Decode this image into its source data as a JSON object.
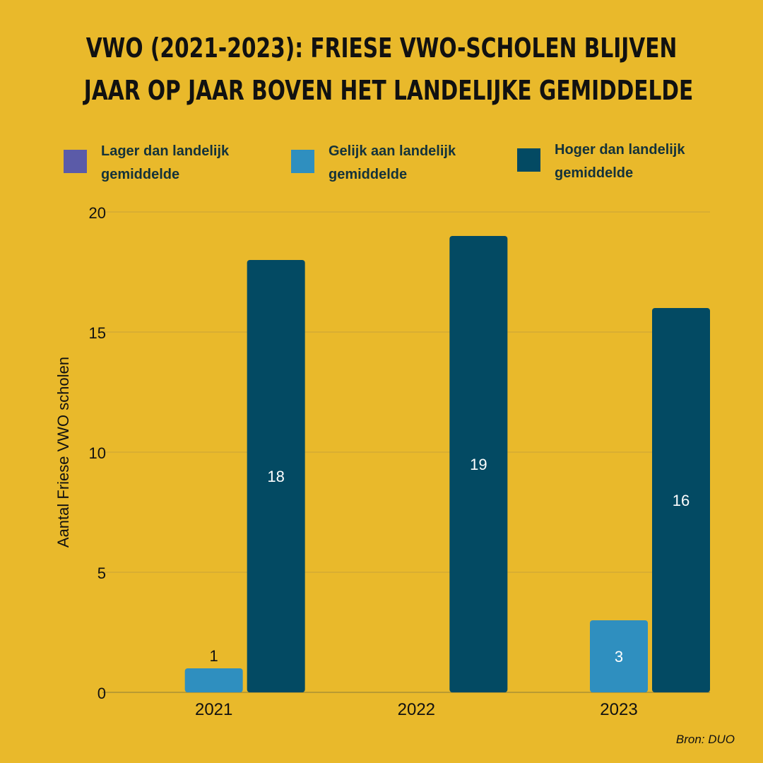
{
  "title": {
    "line1": "VWO (2021-2023): Friese VWO-scholen blijven",
    "line2": "jaar op jaar boven het landelijke gemiddelde"
  },
  "legend": [
    {
      "label": "Lager dan landelijk gemiddelde",
      "color": "#5b5ba8"
    },
    {
      "label": "Gelijk aan landelijk gemiddelde",
      "color": "#2f8fbf"
    },
    {
      "label": "Hoger dan landelijk gemiddelde",
      "color": "#034a63"
    }
  ],
  "source": "Bron: DUO",
  "chart_data": {
    "type": "bar",
    "categories": [
      "2021",
      "2022",
      "2023"
    ],
    "series": [
      {
        "name": "Lager dan landelijk gemiddelde",
        "values": [
          0,
          0,
          0
        ],
        "color": "#5b5ba8"
      },
      {
        "name": "Gelijk aan landelijk gemiddelde",
        "values": [
          1,
          0,
          3
        ],
        "color": "#2f8fbf"
      },
      {
        "name": "Hoger dan landelijk gemiddelde",
        "values": [
          18,
          19,
          16
        ],
        "color": "#034a63"
      }
    ],
    "ylabel": "Aantal Friese VWO scholen",
    "ylim": [
      0,
      20
    ],
    "yticks": [
      "0",
      "5",
      "10",
      "15",
      "20"
    ],
    "grid": true,
    "legend_position": "top"
  }
}
